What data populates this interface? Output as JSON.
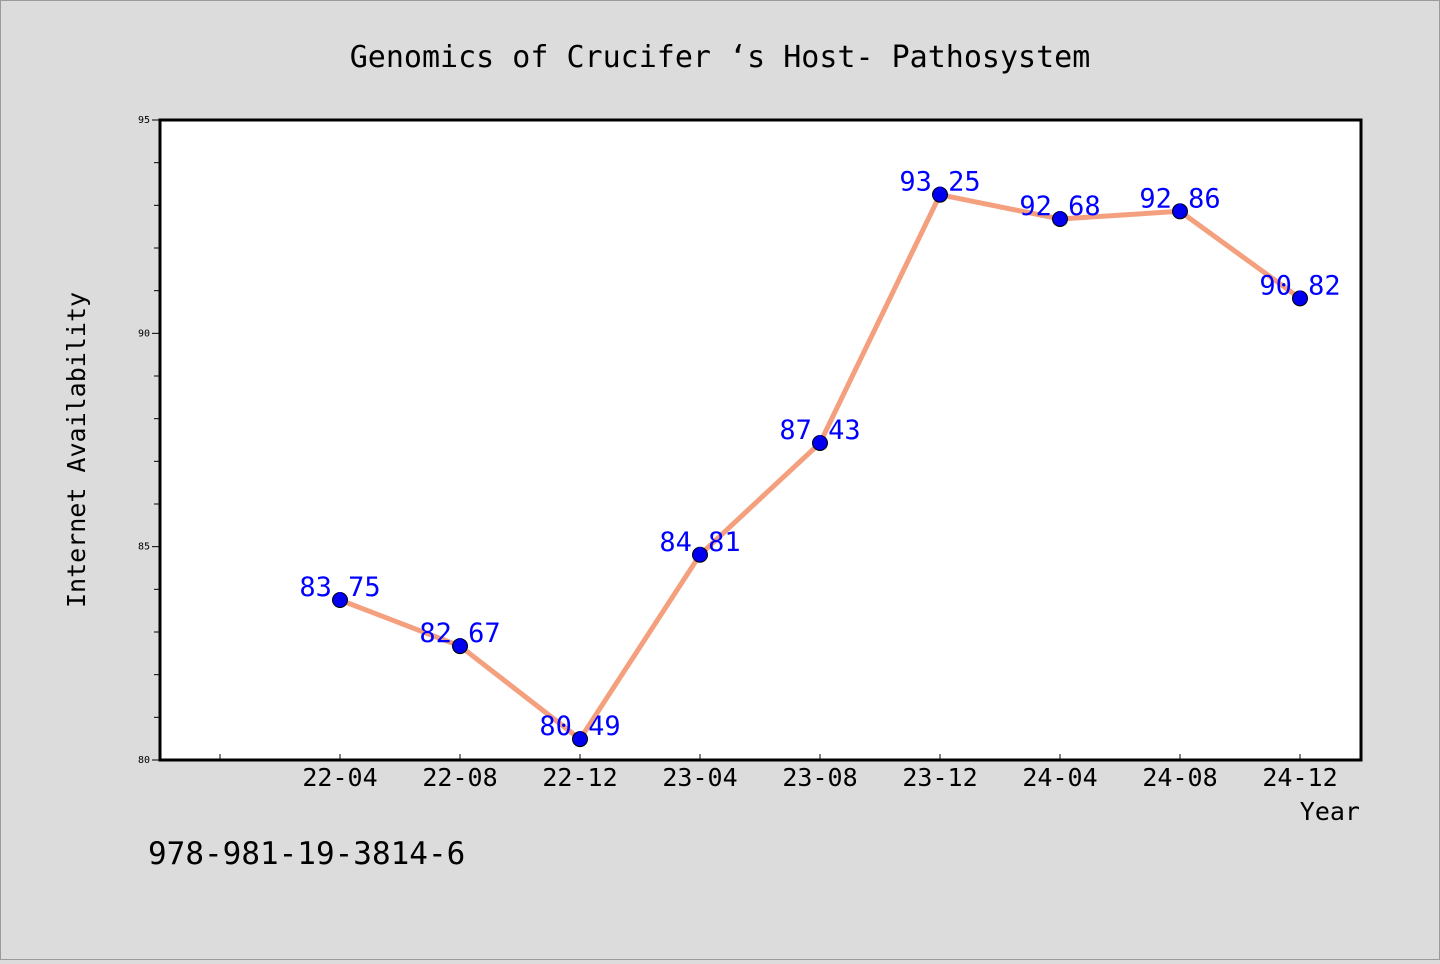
{
  "chart_data": {
    "type": "line",
    "title": "Genomics of Crucifer ‘s Host- Pathosystem",
    "xlabel": "Year",
    "ylabel": "Internet Availability",
    "categories": [
      "22-04",
      "22-08",
      "22-12",
      "23-04",
      "23-08",
      "23-12",
      "24-04",
      "24-08",
      "24-12"
    ],
    "values": [
      83.75,
      82.67,
      80.49,
      84.81,
      87.43,
      93.25,
      92.68,
      92.86,
      90.82
    ],
    "value_labels": [
      "83.75",
      "82.67",
      "80.49",
      "84.81",
      "87.43",
      "93.25",
      "92.68",
      "92.86",
      "90.82"
    ],
    "ylim": [
      80,
      95
    ],
    "yticks": [
      "80",
      "85",
      "90",
      "95"
    ],
    "grid": false,
    "line_color": "#f4a07e",
    "marker_color": "#0000ee",
    "label_color": "#0000ff"
  },
  "footer_text": "978-981-19-3814-6"
}
